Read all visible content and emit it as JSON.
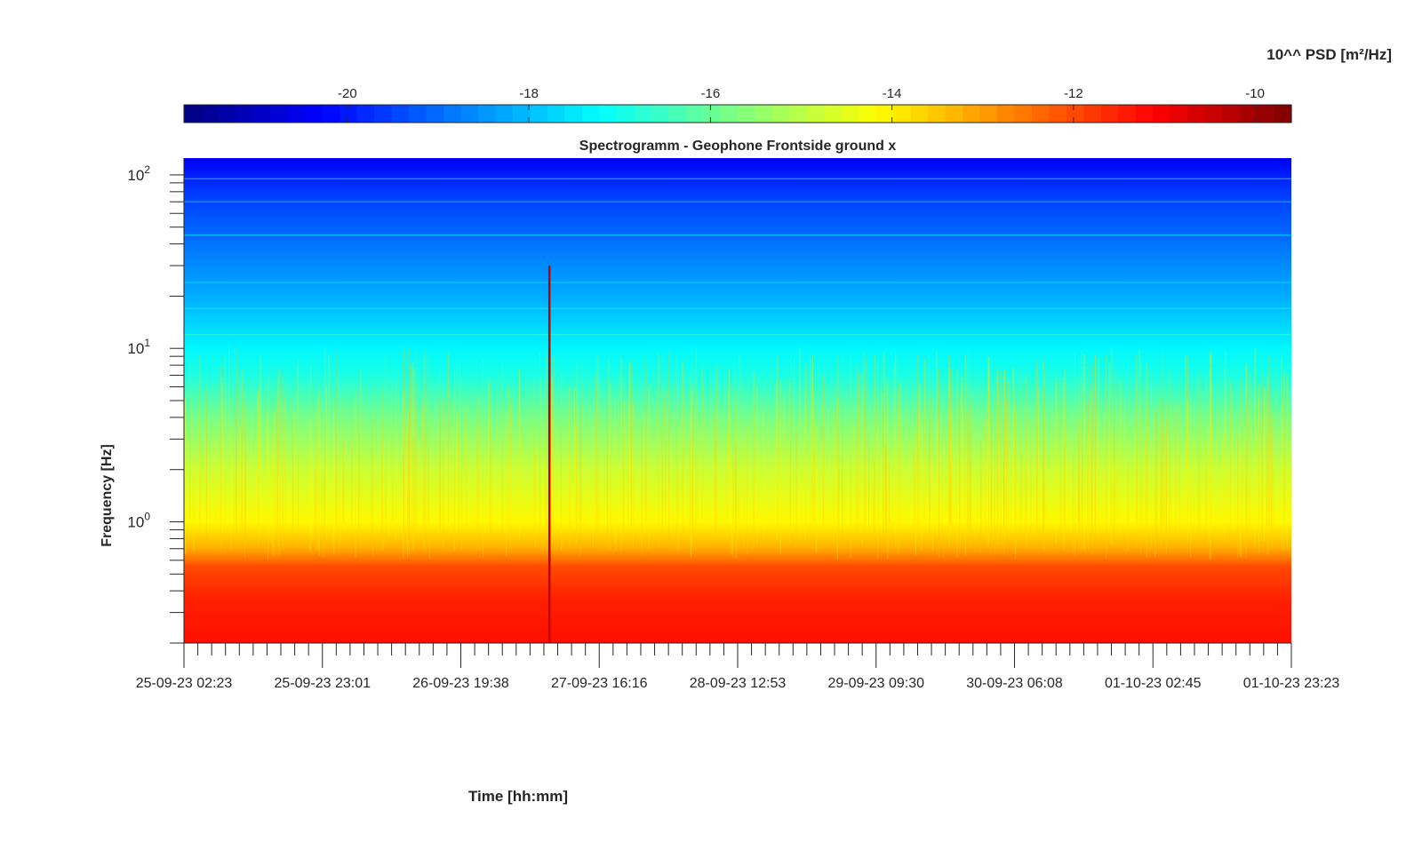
{
  "chart_data": {
    "type": "heatmap",
    "title": "Spectrogramm - Geophone Frontside ground x",
    "xlabel": "Time [hh:mm]",
    "ylabel": "Frequency [Hz]",
    "y_scale": "log",
    "ylim": [
      0.2,
      125
    ],
    "y_ticks": [
      {
        "value": 100,
        "base": "10",
        "exp": "2"
      },
      {
        "value": 10,
        "base": "10",
        "exp": "1"
      },
      {
        "value": 1,
        "base": "10",
        "exp": "0"
      }
    ],
    "x_tick_labels": [
      "25-09-23 02:23",
      "25-09-23 23:01",
      "26-09-23 19:38",
      "27-09-23 16:16",
      "28-09-23 12:53",
      "29-09-23 09:30",
      "30-09-23 06:08",
      "01-10-23 02:45",
      "01-10-23 23:23"
    ],
    "x_minor_per_major": 10,
    "colorbar": {
      "label": "10^^ PSD [m²/Hz]",
      "colormap": "jet",
      "range": [
        -21.8,
        -9.6
      ],
      "ticks": [
        {
          "value": -20,
          "label": "-20"
        },
        {
          "value": -18,
          "label": "-18"
        },
        {
          "value": -16,
          "label": "-16"
        },
        {
          "value": -14,
          "label": "-14"
        },
        {
          "value": -12,
          "label": "-12"
        },
        {
          "value": -10,
          "label": "-10"
        }
      ],
      "steps": 64
    },
    "psd_profile_by_frequency": [
      {
        "freq_hz": 0.2,
        "log10_psd": -11.3
      },
      {
        "freq_hz": 0.35,
        "log10_psd": -11.5
      },
      {
        "freq_hz": 0.55,
        "log10_psd": -12.0
      },
      {
        "freq_hz": 0.7,
        "log10_psd": -13.2
      },
      {
        "freq_hz": 1.0,
        "log10_psd": -14.1
      },
      {
        "freq_hz": 2.0,
        "log10_psd": -14.8
      },
      {
        "freq_hz": 4.0,
        "log10_psd": -15.8
      },
      {
        "freq_hz": 7.0,
        "log10_psd": -16.9
      },
      {
        "freq_hz": 10.0,
        "log10_psd": -17.3
      },
      {
        "freq_hz": 20.0,
        "log10_psd": -18.2
      },
      {
        "freq_hz": 40.0,
        "log10_psd": -18.9
      },
      {
        "freq_hz": 80.0,
        "log10_psd": -19.6
      },
      {
        "freq_hz": 125.0,
        "log10_psd": -20.4
      }
    ],
    "events": [
      {
        "time_fraction": 0.33,
        "freq_min_hz": 0.2,
        "freq_max_hz": 30,
        "log10_psd": -10.3
      }
    ],
    "colors": {
      "axis": "#262626",
      "text": "#262626"
    }
  }
}
